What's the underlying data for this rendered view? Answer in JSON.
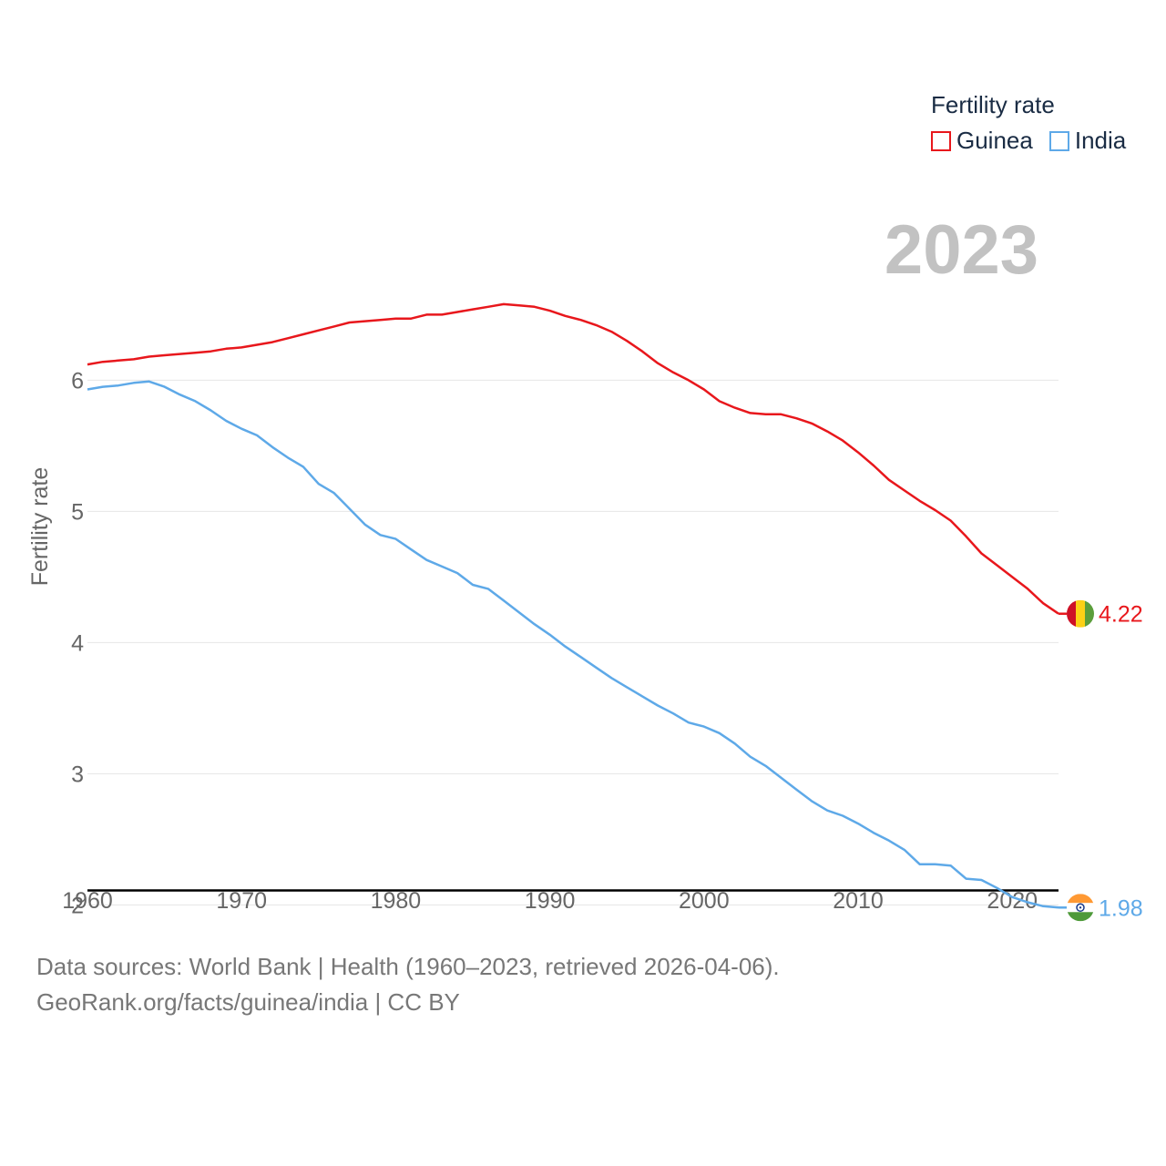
{
  "legend": {
    "title": "Fertility rate",
    "items": [
      {
        "label": "Guinea",
        "color": "#e8171c"
      },
      {
        "label": "India",
        "color": "#5ea9e8"
      }
    ]
  },
  "footer": {
    "sources": "Data sources: World Bank | Health (1960–2023, retrieved 2026-04-06).",
    "link": "GeoRank.org/facts/guinea/india",
    "license": " | CC BY"
  },
  "chart_data": {
    "type": "line",
    "year_label": "2023",
    "ylabel": "Fertility rate",
    "xlabel": "",
    "xlim": [
      1960,
      2023
    ],
    "ylim": [
      1.6,
      7.6
    ],
    "x_ticks": [
      1960,
      1970,
      1980,
      1990,
      2000,
      2010,
      2020
    ],
    "y_ticks": [
      2,
      3,
      4,
      5,
      6
    ],
    "reference_line": 2.11,
    "x": [
      1960,
      1961,
      1962,
      1963,
      1964,
      1965,
      1966,
      1967,
      1968,
      1969,
      1970,
      1971,
      1972,
      1973,
      1974,
      1975,
      1976,
      1977,
      1978,
      1979,
      1980,
      1981,
      1982,
      1983,
      1984,
      1985,
      1986,
      1987,
      1988,
      1989,
      1990,
      1991,
      1992,
      1993,
      1994,
      1995,
      1996,
      1997,
      1998,
      1999,
      2000,
      2001,
      2002,
      2003,
      2004,
      2005,
      2006,
      2007,
      2008,
      2009,
      2010,
      2011,
      2012,
      2013,
      2014,
      2015,
      2016,
      2017,
      2018,
      2019,
      2020,
      2021,
      2022,
      2023
    ],
    "series": [
      {
        "name": "Guinea",
        "color": "#e8171c",
        "end_label": "4.22",
        "values": [
          6.12,
          6.14,
          6.15,
          6.16,
          6.18,
          6.19,
          6.2,
          6.21,
          6.22,
          6.24,
          6.25,
          6.27,
          6.29,
          6.32,
          6.35,
          6.38,
          6.41,
          6.44,
          6.45,
          6.46,
          6.47,
          6.47,
          6.5,
          6.5,
          6.52,
          6.54,
          6.56,
          6.58,
          6.57,
          6.56,
          6.53,
          6.49,
          6.46,
          6.42,
          6.37,
          6.3,
          6.22,
          6.13,
          6.06,
          6.0,
          5.93,
          5.84,
          5.79,
          5.75,
          5.74,
          5.74,
          5.71,
          5.67,
          5.61,
          5.54,
          5.45,
          5.35,
          5.24,
          5.16,
          5.08,
          5.01,
          4.93,
          4.81,
          4.68,
          4.59,
          4.5,
          4.41,
          4.3,
          4.22
        ]
      },
      {
        "name": "India",
        "color": "#5ea9e8",
        "end_label": "1.98",
        "values": [
          5.93,
          5.95,
          5.96,
          5.98,
          5.99,
          5.95,
          5.89,
          5.84,
          5.77,
          5.69,
          5.63,
          5.58,
          5.49,
          5.41,
          5.34,
          5.21,
          5.14,
          5.02,
          4.9,
          4.82,
          4.79,
          4.71,
          4.63,
          4.58,
          4.53,
          4.44,
          4.41,
          4.32,
          4.23,
          4.14,
          4.06,
          3.97,
          3.89,
          3.81,
          3.73,
          3.66,
          3.59,
          3.52,
          3.46,
          3.39,
          3.36,
          3.31,
          3.23,
          3.13,
          3.06,
          2.97,
          2.88,
          2.79,
          2.72,
          2.68,
          2.62,
          2.55,
          2.49,
          2.42,
          2.31,
          2.31,
          2.3,
          2.2,
          2.19,
          2.13,
          2.06,
          2.02,
          1.99,
          1.98
        ]
      }
    ]
  }
}
